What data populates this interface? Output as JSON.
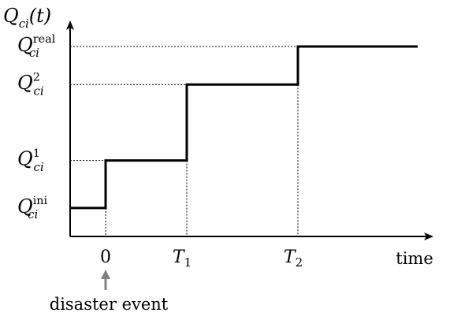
{
  "chart_data": {
    "type": "line",
    "step": true,
    "y_axis_label": {
      "base": "Q",
      "sub": "ci",
      "tail": "(t)"
    },
    "x_axis_label": "time",
    "x_ticks": [
      {
        "label": "0",
        "value": 0
      },
      {
        "label": "T",
        "sub": "1",
        "value": 1
      },
      {
        "label": "T",
        "sub": "2",
        "value": 2
      }
    ],
    "y_ticks": [
      {
        "base": "Q",
        "sub": "ci",
        "sup": "ini",
        "value": 0.15
      },
      {
        "base": "Q",
        "sub": "ci",
        "sup": "1",
        "value": 0.4
      },
      {
        "base": "Q",
        "sub": "ci",
        "sup": "2",
        "value": 0.8
      },
      {
        "base": "Q",
        "sub": "ci",
        "sup": "real",
        "value": 1.0
      }
    ],
    "xlim": [
      -0.45,
      3.0
    ],
    "ylim": [
      0.0,
      1.0
    ],
    "series": [
      {
        "points": [
          [
            -0.45,
            0.15
          ],
          [
            0,
            0.15
          ],
          [
            0,
            0.4
          ],
          [
            1,
            0.4
          ],
          [
            1,
            0.8
          ],
          [
            2.4,
            0.8
          ],
          [
            2.4,
            1.0
          ],
          [
            3.95,
            1.0
          ]
        ]
      }
    ],
    "annotation": {
      "text": "disaster event",
      "x": 0
    },
    "colors": {
      "line": "#000000",
      "axis": "#000000",
      "arrow": "#808080",
      "guide": "#000000"
    }
  }
}
